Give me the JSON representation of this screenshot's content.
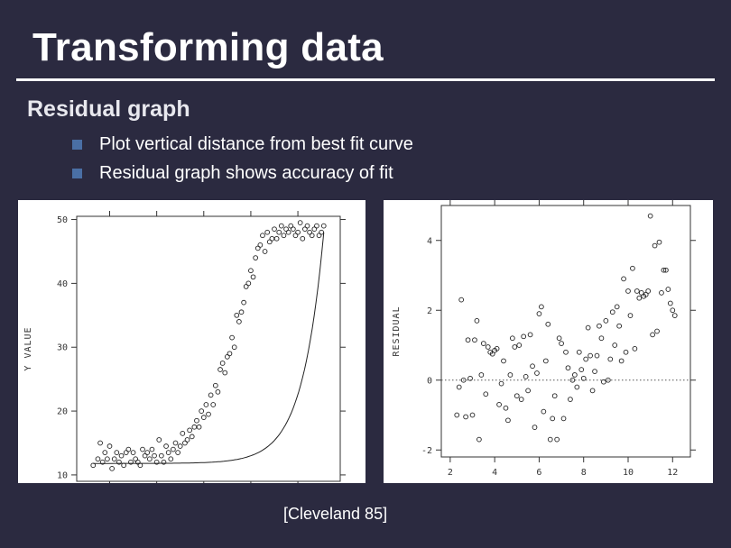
{
  "slide": {
    "title": "Transforming data",
    "subheading": "Residual graph",
    "bullets": [
      "Plot vertical distance from best fit curve",
      "Residual graph shows accuracy of fit"
    ],
    "citation": "[Cleveland 85]",
    "colors": {
      "background": "#2b2a40",
      "text": "#ffffff",
      "bullet": "#4a6fa5"
    }
  },
  "chart_data": [
    {
      "type": "scatter",
      "ylabel": "Y VALUE",
      "xlabel": "",
      "xlim": [
        1.6,
        12.8
      ],
      "ylim": [
        9,
        50.5
      ],
      "yticks": [
        10,
        20,
        30,
        40,
        50
      ],
      "fit_curve": "exponential",
      "fit": {
        "a": 11.8,
        "b": 6e-05,
        "k": 1.1
      },
      "x": [
        2.3,
        2.5,
        2.6,
        2.7,
        2.8,
        2.9,
        3.0,
        3.1,
        3.2,
        3.3,
        3.4,
        3.5,
        3.6,
        3.7,
        3.8,
        3.9,
        4.0,
        4.1,
        4.2,
        4.3,
        4.4,
        4.5,
        4.6,
        4.7,
        4.8,
        4.9,
        5.0,
        5.1,
        5.2,
        5.3,
        5.4,
        5.5,
        5.6,
        5.7,
        5.8,
        5.9,
        6.0,
        6.1,
        6.2,
        6.3,
        6.4,
        6.5,
        6.6,
        6.7,
        6.8,
        6.9,
        7.0,
        7.1,
        7.2,
        7.3,
        7.4,
        7.5,
        7.6,
        7.7,
        7.8,
        7.9,
        8.0,
        8.1,
        8.2,
        8.3,
        8.4,
        8.5,
        8.6,
        8.7,
        8.8,
        8.9,
        9.0,
        9.1,
        9.2,
        9.3,
        9.4,
        9.5,
        9.6,
        9.7,
        9.8,
        9.9,
        10.0,
        10.1,
        10.2,
        10.3,
        10.4,
        10.5,
        10.6,
        10.7,
        10.8,
        10.9,
        11.0,
        11.1,
        11.2,
        11.3,
        11.4,
        11.5,
        11.6,
        11.7,
        11.8,
        11.9,
        12.0,
        12.1
      ],
      "y": [
        11.5,
        12.5,
        15.0,
        12.0,
        13.5,
        12.5,
        14.5,
        11.0,
        12.5,
        13.5,
        12.0,
        13.0,
        11.5,
        13.5,
        14.0,
        12.0,
        13.5,
        12.5,
        12.0,
        11.5,
        14.0,
        13.0,
        13.5,
        12.5,
        14.0,
        13.0,
        12.0,
        15.5,
        13.0,
        12.0,
        14.5,
        13.5,
        12.5,
        14.0,
        15.0,
        13.5,
        14.5,
        16.5,
        15.0,
        15.5,
        17.0,
        16.0,
        17.5,
        18.5,
        17.5,
        20.0,
        19.0,
        21.0,
        19.5,
        22.5,
        21.0,
        24.0,
        23.0,
        26.5,
        27.5,
        26.0,
        28.5,
        29.0,
        31.5,
        30.0,
        35.0,
        34.0,
        35.5,
        37.0,
        39.5,
        40.0,
        42.0,
        41.0,
        44.0,
        45.5,
        46.0,
        47.5,
        45.0,
        48.0,
        46.5,
        47.0,
        48.5,
        47.0,
        48.0,
        49.0,
        47.5,
        48.5,
        48.0,
        49.0,
        48.5,
        47.5,
        48.0,
        49.5,
        47.0,
        48.5,
        49.0,
        48.0,
        47.5,
        48.5,
        49.0,
        47.5,
        48.0,
        49.0
      ]
    },
    {
      "type": "scatter",
      "ylabel": "RESIDUAL",
      "xlabel": "",
      "xlim": [
        1.6,
        12.8
      ],
      "ylim": [
        -2.2,
        5.0
      ],
      "xticks": [
        2,
        4,
        6,
        8,
        10,
        12
      ],
      "yticks": [
        -2,
        0,
        2,
        4
      ],
      "reference_line": 0,
      "x": [
        2.3,
        2.4,
        2.5,
        2.6,
        2.7,
        2.8,
        2.9,
        3.0,
        3.1,
        3.2,
        3.3,
        3.4,
        3.5,
        3.6,
        3.7,
        3.8,
        3.9,
        4.0,
        4.1,
        4.2,
        4.3,
        4.4,
        4.5,
        4.6,
        4.7,
        4.8,
        4.9,
        5.0,
        5.1,
        5.2,
        5.3,
        5.4,
        5.5,
        5.6,
        5.7,
        5.8,
        5.9,
        6.0,
        6.1,
        6.2,
        6.3,
        6.4,
        6.5,
        6.6,
        6.7,
        6.8,
        6.9,
        7.0,
        7.1,
        7.2,
        7.3,
        7.4,
        7.5,
        7.6,
        7.7,
        7.8,
        7.9,
        8.0,
        8.1,
        8.2,
        8.3,
        8.4,
        8.5,
        8.6,
        8.7,
        8.8,
        8.9,
        9.0,
        9.1,
        9.2,
        9.3,
        9.4,
        9.5,
        9.6,
        9.7,
        9.8,
        9.9,
        10.0,
        10.1,
        10.2,
        10.3,
        10.4,
        10.5,
        10.6,
        10.7,
        10.8,
        10.9,
        11.0,
        11.1,
        11.2,
        11.3,
        11.4,
        11.5,
        11.6,
        11.7,
        11.8,
        11.9,
        12.0,
        12.1
      ],
      "y": [
        -1.0,
        -0.2,
        2.3,
        0.0,
        -1.05,
        1.15,
        0.05,
        -1.0,
        1.15,
        1.7,
        -1.7,
        0.15,
        1.05,
        -0.4,
        0.95,
        0.8,
        0.75,
        0.85,
        0.9,
        -0.7,
        -0.1,
        0.55,
        -0.8,
        -1.15,
        0.15,
        1.2,
        0.95,
        -0.45,
        1.0,
        -0.55,
        1.25,
        0.1,
        -0.3,
        1.3,
        0.4,
        -1.35,
        0.2,
        1.9,
        2.1,
        -0.9,
        0.55,
        1.6,
        -1.7,
        -1.1,
        -0.45,
        -1.7,
        1.2,
        1.05,
        -1.1,
        0.8,
        0.35,
        -0.55,
        0.0,
        0.15,
        -0.2,
        0.8,
        0.3,
        0.05,
        0.6,
        1.5,
        0.7,
        -0.3,
        0.25,
        0.7,
        1.55,
        1.2,
        -0.05,
        1.7,
        0.0,
        0.6,
        1.95,
        1.0,
        2.1,
        1.55,
        0.55,
        2.9,
        0.8,
        2.55,
        1.85,
        3.2,
        0.9,
        2.55,
        2.35,
        2.5,
        2.4,
        2.45,
        2.55,
        4.7,
        1.3,
        3.85,
        1.4,
        3.95,
        2.5,
        3.15,
        3.15,
        2.6,
        2.2,
        2.0,
        1.85
      ]
    }
  ]
}
